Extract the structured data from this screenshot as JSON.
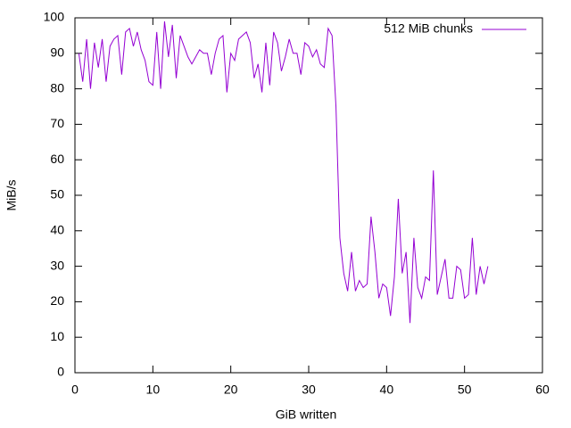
{
  "chart_data": {
    "type": "line",
    "xlabel": "GiB written",
    "ylabel": "MiB/s",
    "xlim": [
      0,
      60
    ],
    "xticks": [
      0,
      10,
      20,
      30,
      40,
      50,
      60
    ],
    "ylim": [
      0,
      100
    ],
    "yticks": [
      0,
      10,
      20,
      30,
      40,
      50,
      60,
      70,
      80,
      90,
      100
    ],
    "legend_position": "top-right",
    "x": [
      0.5,
      1,
      1.5,
      2,
      2.5,
      3,
      3.5,
      4,
      4.5,
      5,
      5.5,
      6,
      6.5,
      7,
      7.5,
      8,
      8.5,
      9,
      9.5,
      10,
      10.5,
      11,
      11.5,
      12,
      12.5,
      13,
      13.5,
      14,
      14.5,
      15,
      15.5,
      16,
      16.5,
      17,
      17.5,
      18,
      18.5,
      19,
      19.5,
      20,
      20.5,
      21,
      21.5,
      22,
      22.5,
      23,
      23.5,
      24,
      24.5,
      25,
      25.5,
      26,
      26.5,
      27,
      27.5,
      28,
      28.5,
      29,
      29.5,
      30,
      30.5,
      31,
      31.5,
      32,
      32.5,
      33,
      33.5,
      34,
      34.5,
      35,
      35.5,
      36,
      36.5,
      37,
      37.5,
      38,
      38.5,
      39,
      39.5,
      40,
      40.5,
      41,
      41.5,
      42,
      42.5,
      43,
      43.5,
      44,
      44.5,
      45,
      45.5,
      46,
      46.5,
      47,
      47.5,
      48,
      48.5,
      49,
      49.5,
      50,
      50.5,
      51,
      51.5,
      52,
      52.5,
      53
    ],
    "series": [
      {
        "name": "512 MiB chunks",
        "color": "#9400d3",
        "values": [
          90,
          82,
          94,
          80,
          93,
          86,
          94,
          82,
          92,
          94,
          95,
          84,
          96,
          97,
          92,
          96,
          91,
          88,
          82,
          81,
          96,
          80,
          99,
          89,
          98,
          83,
          95,
          92,
          89,
          87,
          89,
          91,
          90,
          90,
          84,
          90,
          94,
          95,
          79,
          90,
          88,
          94,
          95,
          96,
          93,
          83,
          87,
          79,
          93,
          81,
          96,
          93,
          85,
          89,
          94,
          90,
          90,
          84,
          93,
          92,
          89,
          91,
          87,
          86,
          97,
          95,
          75,
          38,
          28,
          23,
          34,
          23,
          26,
          24,
          25,
          44,
          34,
          21,
          25,
          24,
          16,
          27,
          49,
          28,
          34,
          14,
          38,
          24,
          21,
          27,
          26,
          57,
          22,
          27,
          32,
          21,
          21,
          30,
          29,
          21,
          22,
          38,
          22,
          30,
          25,
          30
        ]
      }
    ]
  }
}
